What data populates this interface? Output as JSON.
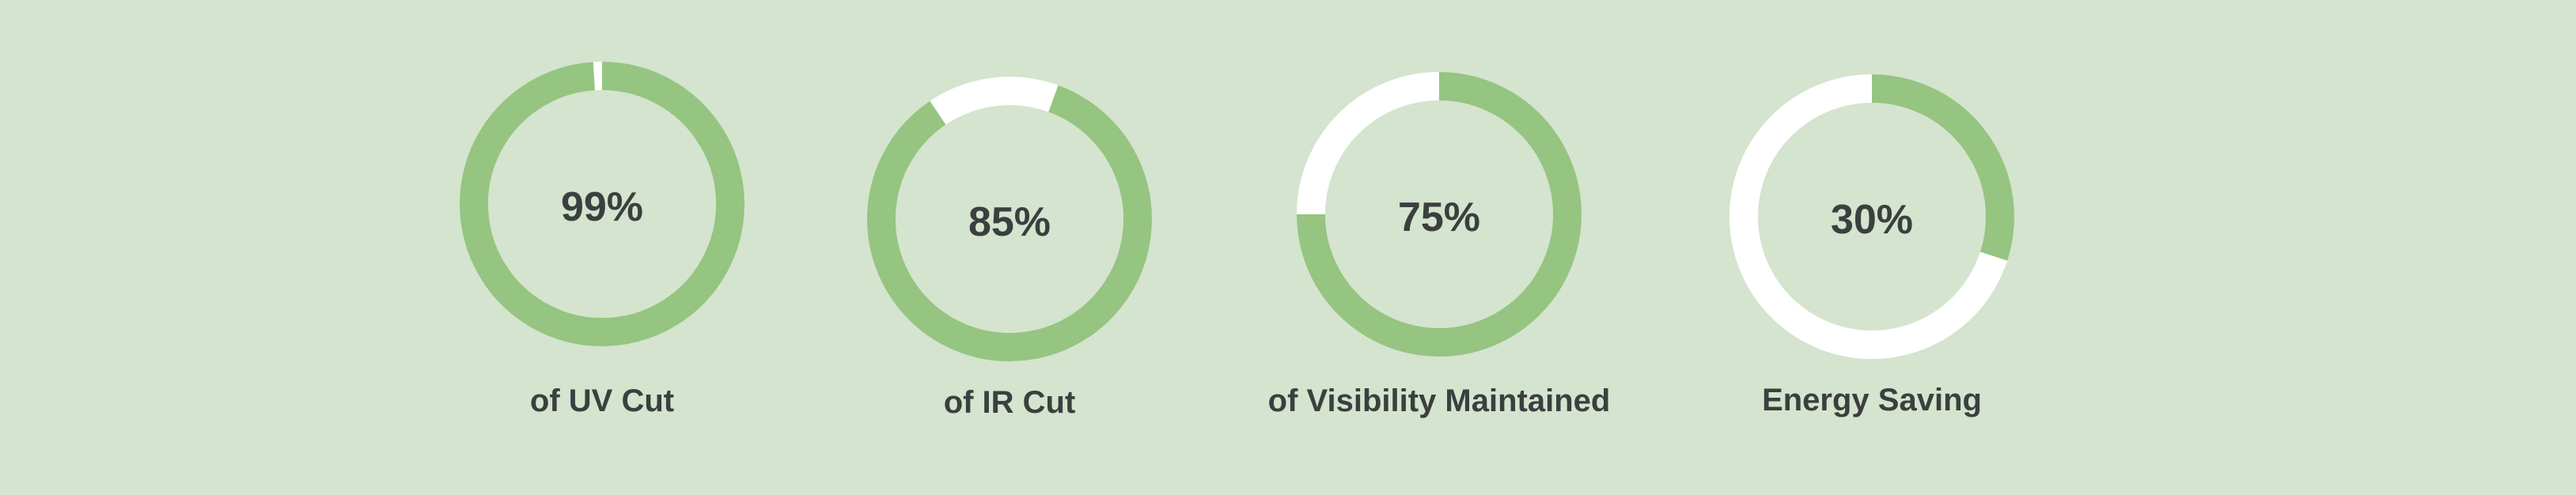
{
  "colors": {
    "background": "#d4e4ce",
    "filled": "#96c481",
    "empty": "#ffffff",
    "text": "#3b3f3f"
  },
  "chart_data": [
    {
      "type": "pie",
      "variant": "donut",
      "value": 99,
      "value_label": "99%",
      "caption": "of UV Cut",
      "unit": "%"
    },
    {
      "type": "pie",
      "variant": "donut",
      "value": 85,
      "value_label": "85%",
      "caption": "of IR Cut",
      "unit": "%"
    },
    {
      "type": "pie",
      "variant": "donut",
      "value": 75,
      "value_label": "75%",
      "caption": "of Visibility Maintained",
      "unit": "%"
    },
    {
      "type": "pie",
      "variant": "donut",
      "value": 30,
      "value_label": "30%",
      "caption": "Energy Saving",
      "unit": "%"
    }
  ]
}
